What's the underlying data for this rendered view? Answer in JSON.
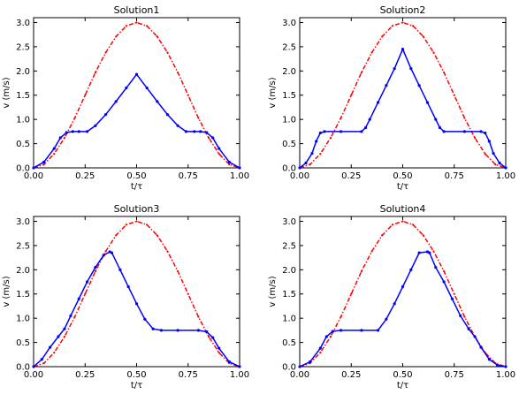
{
  "chart_data": [
    {
      "type": "line",
      "title": "Solution1",
      "xlabel": "t/τ",
      "ylabel": "v (m/s)",
      "xlim": [
        0,
        1
      ],
      "ylim": [
        0,
        3.1
      ],
      "xticks": [
        "0.00",
        "0.25",
        "0.50",
        "0.75",
        "1.00"
      ],
      "yticks": [
        "0.0",
        "0.5",
        "1.0",
        "1.5",
        "2.0",
        "2.5",
        "3.0"
      ],
      "grid": false,
      "legend": "none",
      "series": [
        {
          "color": "#ff0000",
          "style": "dash-dot",
          "x": [
            0,
            0.05,
            0.1,
            0.15,
            0.2,
            0.25,
            0.3,
            0.35,
            0.4,
            0.45,
            0.5,
            0.55,
            0.6,
            0.65,
            0.7,
            0.75,
            0.8,
            0.85,
            0.9,
            0.95,
            1
          ],
          "y": [
            0,
            0.07,
            0.29,
            0.62,
            1.03,
            1.5,
            1.97,
            2.38,
            2.71,
            2.93,
            3.0,
            2.93,
            2.71,
            2.38,
            1.97,
            1.5,
            1.03,
            0.62,
            0.29,
            0.07,
            0
          ]
        },
        {
          "color": "#0000ff",
          "style": "marker-line",
          "x": [
            0,
            0.05,
            0.1,
            0.13,
            0.16,
            0.19,
            0.22,
            0.26,
            0.3,
            0.35,
            0.4,
            0.45,
            0.5,
            0.55,
            0.6,
            0.65,
            0.7,
            0.74,
            0.78,
            0.81,
            0.84,
            0.87,
            0.9,
            0.95,
            1
          ],
          "y": [
            0,
            0.12,
            0.4,
            0.62,
            0.73,
            0.75,
            0.75,
            0.75,
            0.87,
            1.1,
            1.37,
            1.65,
            1.93,
            1.65,
            1.37,
            1.1,
            0.87,
            0.75,
            0.75,
            0.75,
            0.73,
            0.62,
            0.4,
            0.12,
            0
          ]
        }
      ]
    },
    {
      "type": "line",
      "title": "Solution2",
      "xlabel": "t/τ",
      "ylabel": "v (m/s)",
      "xlim": [
        0,
        1
      ],
      "ylim": [
        0,
        3.1
      ],
      "xticks": [
        "0.00",
        "0.25",
        "0.50",
        "0.75",
        "1.00"
      ],
      "yticks": [
        "0.0",
        "0.5",
        "1.0",
        "1.5",
        "2.0",
        "2.5",
        "3.0"
      ],
      "grid": false,
      "legend": "none",
      "series": [
        {
          "color": "#ff0000",
          "style": "dash-dot",
          "x": [
            0,
            0.05,
            0.1,
            0.15,
            0.2,
            0.25,
            0.3,
            0.35,
            0.4,
            0.45,
            0.5,
            0.55,
            0.6,
            0.65,
            0.7,
            0.75,
            0.8,
            0.85,
            0.9,
            0.95,
            1
          ],
          "y": [
            0,
            0.07,
            0.29,
            0.62,
            1.03,
            1.5,
            1.97,
            2.38,
            2.71,
            2.93,
            3.0,
            2.93,
            2.71,
            2.38,
            1.97,
            1.5,
            1.03,
            0.62,
            0.29,
            0.07,
            0
          ]
        },
        {
          "color": "#0000ff",
          "style": "marker-line",
          "x": [
            0,
            0.03,
            0.06,
            0.08,
            0.1,
            0.12,
            0.2,
            0.3,
            0.32,
            0.34,
            0.38,
            0.42,
            0.46,
            0.5,
            0.54,
            0.58,
            0.62,
            0.66,
            0.68,
            0.7,
            0.8,
            0.88,
            0.9,
            0.92,
            0.94,
            0.97,
            1
          ],
          "y": [
            0,
            0.1,
            0.3,
            0.55,
            0.72,
            0.75,
            0.75,
            0.75,
            0.83,
            1.0,
            1.35,
            1.7,
            2.05,
            2.45,
            2.05,
            1.7,
            1.35,
            1.0,
            0.83,
            0.75,
            0.75,
            0.75,
            0.72,
            0.55,
            0.3,
            0.1,
            0
          ]
        }
      ]
    },
    {
      "type": "line",
      "title": "Solution3",
      "xlabel": "t/τ",
      "ylabel": "v (m/s)",
      "xlim": [
        0,
        1
      ],
      "ylim": [
        0,
        3.1
      ],
      "xticks": [
        "0.00",
        "0.25",
        "0.50",
        "0.75",
        "1.00"
      ],
      "yticks": [
        "0.0",
        "0.5",
        "1.0",
        "1.5",
        "2.0",
        "2.5",
        "3.0"
      ],
      "grid": false,
      "legend": "none",
      "series": [
        {
          "color": "#ff0000",
          "style": "dash-dot",
          "x": [
            0,
            0.05,
            0.1,
            0.15,
            0.2,
            0.25,
            0.3,
            0.35,
            0.4,
            0.45,
            0.5,
            0.55,
            0.6,
            0.65,
            0.7,
            0.75,
            0.8,
            0.85,
            0.9,
            0.95,
            1
          ],
          "y": [
            0,
            0.07,
            0.29,
            0.62,
            1.03,
            1.5,
            1.97,
            2.38,
            2.71,
            2.93,
            3.0,
            2.93,
            2.71,
            2.38,
            1.97,
            1.5,
            1.03,
            0.62,
            0.29,
            0.07,
            0
          ]
        },
        {
          "color": "#0000ff",
          "style": "marker-line",
          "x": [
            0,
            0.04,
            0.08,
            0.12,
            0.15,
            0.18,
            0.22,
            0.26,
            0.3,
            0.34,
            0.37,
            0.38,
            0.42,
            0.46,
            0.5,
            0.54,
            0.58,
            0.62,
            0.7,
            0.8,
            0.84,
            0.87,
            0.9,
            0.95,
            1
          ],
          "y": [
            0,
            0.15,
            0.4,
            0.62,
            0.78,
            1.05,
            1.4,
            1.75,
            2.05,
            2.3,
            2.37,
            2.35,
            2.0,
            1.65,
            1.3,
            0.98,
            0.78,
            0.75,
            0.75,
            0.75,
            0.72,
            0.6,
            0.38,
            0.1,
            0
          ]
        }
      ]
    },
    {
      "type": "line",
      "title": "Solution4",
      "xlabel": "t/τ",
      "ylabel": "v (m/s)",
      "xlim": [
        0,
        1
      ],
      "ylim": [
        0,
        3.1
      ],
      "xticks": [
        "0.00",
        "0.25",
        "0.50",
        "0.75",
        "1.00"
      ],
      "yticks": [
        "0.0",
        "0.5",
        "1.0",
        "1.5",
        "2.0",
        "2.5",
        "3.0"
      ],
      "grid": false,
      "legend": "none",
      "series": [
        {
          "color": "#ff0000",
          "style": "dash-dot",
          "x": [
            0,
            0.05,
            0.1,
            0.15,
            0.2,
            0.25,
            0.3,
            0.35,
            0.4,
            0.45,
            0.5,
            0.55,
            0.6,
            0.65,
            0.7,
            0.75,
            0.8,
            0.85,
            0.9,
            0.95,
            1
          ],
          "y": [
            0,
            0.07,
            0.29,
            0.62,
            1.03,
            1.5,
            1.97,
            2.38,
            2.71,
            2.93,
            3.0,
            2.93,
            2.71,
            2.38,
            1.97,
            1.5,
            1.03,
            0.62,
            0.29,
            0.07,
            0
          ]
        },
        {
          "color": "#0000ff",
          "style": "marker-line",
          "x": [
            0,
            0.05,
            0.1,
            0.13,
            0.16,
            0.2,
            0.3,
            0.38,
            0.42,
            0.46,
            0.5,
            0.54,
            0.58,
            0.62,
            0.63,
            0.66,
            0.7,
            0.74,
            0.78,
            0.82,
            0.85,
            0.88,
            0.92,
            0.96,
            1
          ],
          "y": [
            0,
            0.1,
            0.38,
            0.62,
            0.73,
            0.75,
            0.75,
            0.75,
            0.98,
            1.3,
            1.65,
            2.0,
            2.35,
            2.37,
            2.35,
            2.05,
            1.75,
            1.4,
            1.05,
            0.78,
            0.62,
            0.4,
            0.15,
            0.03,
            0
          ]
        }
      ]
    }
  ]
}
